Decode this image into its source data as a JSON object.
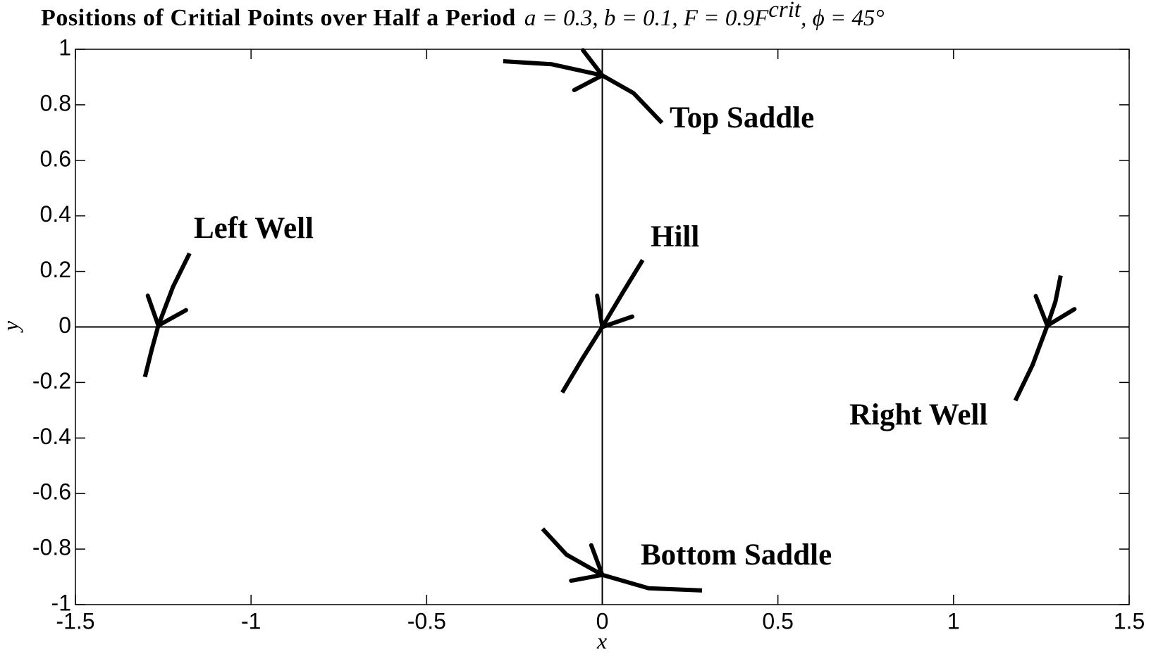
{
  "chart_data": {
    "type": "line",
    "title": "Positions of Critial Points over Half a Period",
    "subtitle": [
      "a = 0.3, b = 0.1, F = 0.9F",
      "crit",
      ", ϕ = 45°"
    ],
    "xlabel": "x",
    "ylabel": "y",
    "xlim": [
      -1.5,
      1.5
    ],
    "xticks": [
      -1.5,
      -1,
      -0.5,
      0,
      0.5,
      1,
      1.5
    ],
    "ylim": [
      -1,
      1
    ],
    "yticks": [
      -1,
      -0.8,
      -0.6,
      -0.4,
      -0.2,
      0,
      0.2,
      0.4,
      0.6,
      0.8,
      1
    ],
    "series": [
      {
        "name": "Top Saddle",
        "color": "#000000",
        "x": [
          -0.282,
          -0.144,
          0,
          0.089,
          0.17
        ],
        "values": [
          0.957,
          0.946,
          0.906,
          0.842,
          0.735
        ]
      },
      {
        "name": "Left Well",
        "color": "#000000",
        "x": [
          -1.175,
          -1.222,
          -1.264,
          -1.283,
          -1.302
        ],
        "values": [
          0.265,
          0.145,
          0.005,
          -0.083,
          -0.18
        ]
      },
      {
        "name": "Hill",
        "color": "#000000",
        "x": [
          0.115,
          0.058,
          0,
          -0.057,
          -0.114
        ],
        "values": [
          0.241,
          0.123,
          0,
          -0.115,
          -0.236
        ]
      },
      {
        "name": "Right Well",
        "color": "#000000",
        "x": [
          1.305,
          1.29,
          1.267,
          1.225,
          1.176
        ],
        "values": [
          0.185,
          0.091,
          0.005,
          -0.137,
          -0.265
        ]
      },
      {
        "name": "Bottom Saddle",
        "color": "#000000",
        "x": [
          -0.17,
          -0.102,
          0,
          0.132,
          0.284
        ],
        "values": [
          -0.727,
          -0.82,
          -0.893,
          -0.941,
          -0.949
        ]
      }
    ]
  }
}
